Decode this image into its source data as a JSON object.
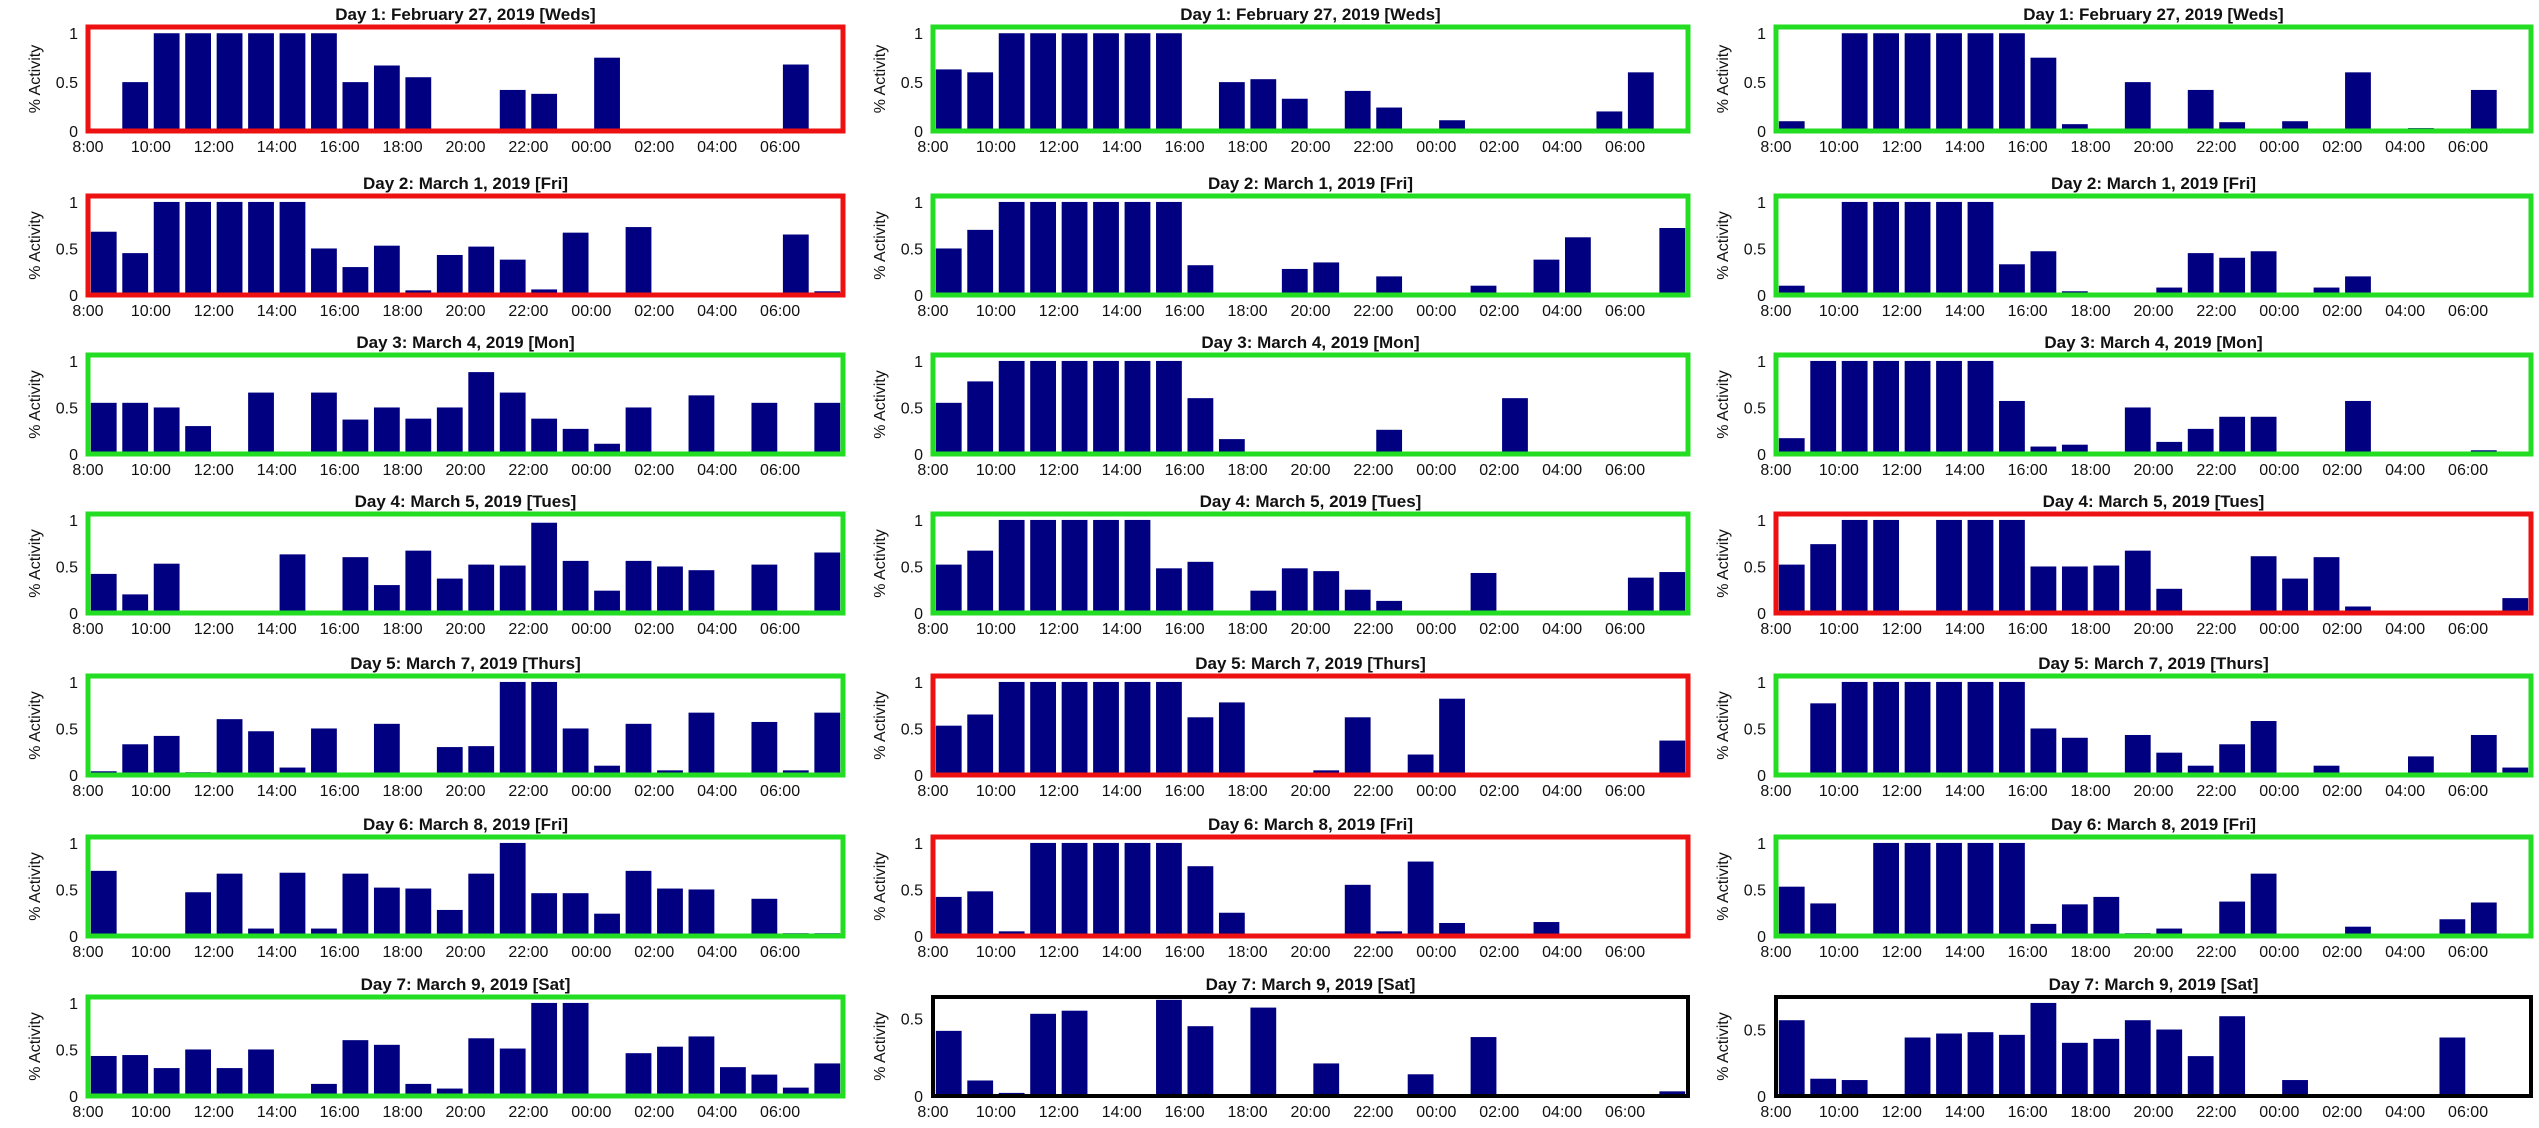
{
  "figure": {
    "bar_color": "#000080",
    "frame_colors": {
      "green": "#22dd22",
      "red": "#ee1111",
      "black": "#000000"
    },
    "ylabel": "% Activity",
    "x_tick_labels": [
      "8:00",
      "10:00",
      "12:00",
      "14:00",
      "16:00",
      "18:00",
      "20:00",
      "22:00",
      "00:00",
      "02:00",
      "04:00",
      "06:00"
    ],
    "bar_slot_hours": 1,
    "start_time": "8:00",
    "end_time": "07:00"
  },
  "chart_data": [
    {
      "col": 0,
      "row": 0,
      "type": "bar",
      "title": "Day 1: February 27, 2019 [Weds]",
      "frame": "red",
      "ylim": [
        0,
        1
      ],
      "yticks": [
        "0",
        "0.5",
        "1"
      ],
      "values": [
        0,
        0.5,
        1,
        1,
        1,
        1,
        1,
        1,
        0.5,
        0.67,
        0.55,
        0,
        0,
        0.42,
        0.38,
        0,
        0.75,
        0,
        0,
        0,
        0,
        0,
        0.68,
        0
      ]
    },
    {
      "col": 0,
      "row": 1,
      "type": "bar",
      "title": "Day 2: March 1, 2019 [Fri]",
      "frame": "red",
      "ylim": [
        0,
        1
      ],
      "yticks": [
        "0",
        "0.5",
        "1"
      ],
      "values": [
        0.68,
        0.45,
        1,
        1,
        1,
        1,
        1,
        0.5,
        0.3,
        0.53,
        0.05,
        0.43,
        0.52,
        0.38,
        0.06,
        0.67,
        0,
        0.73,
        0,
        0,
        0,
        0,
        0.65,
        0.04
      ]
    },
    {
      "col": 0,
      "row": 2,
      "type": "bar",
      "title": "Day 3: March 4, 2019 [Mon]",
      "frame": "green",
      "ylim": [
        0,
        1
      ],
      "yticks": [
        "0",
        "0.5",
        "1"
      ],
      "values": [
        0.55,
        0.55,
        0.5,
        0.3,
        0,
        0.66,
        0,
        0.66,
        0.37,
        0.5,
        0.38,
        0.5,
        0.88,
        0.66,
        0.38,
        0.27,
        0.11,
        0.5,
        0,
        0.63,
        0,
        0.55,
        0,
        0.55
      ]
    },
    {
      "col": 0,
      "row": 3,
      "type": "bar",
      "title": "Day 4: March 5, 2019 [Tues]",
      "frame": "green",
      "ylim": [
        0,
        1
      ],
      "yticks": [
        "0",
        "0.5",
        "1"
      ],
      "values": [
        0.42,
        0.2,
        0.53,
        0,
        0,
        0,
        0.63,
        0,
        0.6,
        0.3,
        0.67,
        0.37,
        0.52,
        0.51,
        0.97,
        0.56,
        0.24,
        0.56,
        0.5,
        0.46,
        0,
        0.52,
        0,
        0.65
      ]
    },
    {
      "col": 0,
      "row": 4,
      "type": "bar",
      "title": "Day 5: March 7, 2019 [Thurs]",
      "frame": "green",
      "ylim": [
        0,
        1
      ],
      "yticks": [
        "0",
        "0.5",
        "1"
      ],
      "values": [
        0.04,
        0.33,
        0.42,
        0.03,
        0.6,
        0.47,
        0.08,
        0.5,
        0,
        0.55,
        0,
        0.3,
        0.31,
        1,
        1,
        0.5,
        0.1,
        0.55,
        0.05,
        0.67,
        0,
        0.57,
        0.05,
        0.67
      ]
    },
    {
      "col": 0,
      "row": 5,
      "type": "bar",
      "title": "Day 6: March 8, 2019 [Fri]",
      "frame": "green",
      "ylim": [
        0,
        1
      ],
      "yticks": [
        "0",
        "0.5",
        "1"
      ],
      "values": [
        0.7,
        0,
        0,
        0.47,
        0.67,
        0.08,
        0.68,
        0.08,
        0.67,
        0.52,
        0.51,
        0.28,
        0.67,
        1,
        0.46,
        0.46,
        0.24,
        0.7,
        0.51,
        0.5,
        0,
        0.4,
        0.03,
        0.03
      ]
    },
    {
      "col": 0,
      "row": 6,
      "type": "bar",
      "title": "Day 7: March 9, 2019 [Sat]",
      "frame": "green",
      "ylim": [
        0,
        1
      ],
      "yticks": [
        "0",
        "0.5",
        "1"
      ],
      "values": [
        0.43,
        0.44,
        0.3,
        0.5,
        0.3,
        0.5,
        0,
        0.13,
        0.6,
        0.55,
        0.13,
        0.08,
        0.62,
        0.51,
        1,
        1,
        0,
        0.46,
        0.53,
        0.64,
        0.31,
        0.23,
        0.09,
        0.35
      ]
    },
    {
      "col": 1,
      "row": 0,
      "type": "bar",
      "title": "Day 1: February 27, 2019 [Weds]",
      "frame": "green",
      "ylim": [
        0,
        1
      ],
      "yticks": [
        "0",
        "0.5",
        "1"
      ],
      "values": [
        0.63,
        0.6,
        1,
        1,
        1,
        1,
        1,
        1,
        0,
        0.5,
        0.53,
        0.33,
        0,
        0.41,
        0.24,
        0,
        0.11,
        0,
        0,
        0,
        0,
        0.2,
        0.6,
        0
      ]
    },
    {
      "col": 1,
      "row": 1,
      "type": "bar",
      "title": "Day 2: March 1, 2019 [Fri]",
      "frame": "green",
      "ylim": [
        0,
        1
      ],
      "yticks": [
        "0",
        "0.5",
        "1"
      ],
      "values": [
        0.5,
        0.7,
        1,
        1,
        1,
        1,
        1,
        1,
        0.32,
        0,
        0,
        0.28,
        0.35,
        0,
        0.2,
        0,
        0,
        0.1,
        0,
        0.38,
        0.62,
        0,
        0,
        0.72
      ]
    },
    {
      "col": 1,
      "row": 2,
      "type": "bar",
      "title": "Day 3: March 4, 2019 [Mon]",
      "frame": "green",
      "ylim": [
        0,
        1
      ],
      "yticks": [
        "0",
        "0.5",
        "1"
      ],
      "values": [
        0.55,
        0.78,
        1,
        1,
        1,
        1,
        1,
        1,
        0.6,
        0.16,
        0,
        0,
        0,
        0,
        0.26,
        0,
        0,
        0,
        0.6,
        0,
        0,
        0,
        0,
        0
      ]
    },
    {
      "col": 1,
      "row": 3,
      "type": "bar",
      "title": "Day 4: March 5, 2019 [Tues]",
      "frame": "green",
      "ylim": [
        0,
        1
      ],
      "yticks": [
        "0",
        "0.5",
        "1"
      ],
      "values": [
        0.52,
        0.67,
        1,
        1,
        1,
        1,
        1,
        0.48,
        0.55,
        0,
        0.24,
        0.48,
        0.45,
        0.25,
        0.13,
        0.02,
        0,
        0.43,
        0,
        0,
        0,
        0,
        0.38,
        0.44
      ]
    },
    {
      "col": 1,
      "row": 4,
      "type": "bar",
      "title": "Day 5: March 7, 2019 [Thurs]",
      "frame": "red",
      "ylim": [
        0,
        1
      ],
      "yticks": [
        "0",
        "0.5",
        "1"
      ],
      "values": [
        0.53,
        0.65,
        1,
        1,
        1,
        1,
        1,
        1,
        0.62,
        0.78,
        0,
        0,
        0.05,
        0.62,
        0,
        0.22,
        0.82,
        0,
        0,
        0.02,
        0,
        0,
        0,
        0.37
      ]
    },
    {
      "col": 1,
      "row": 5,
      "type": "bar",
      "title": "Day 6: March 8, 2019 [Fri]",
      "frame": "red",
      "ylim": [
        0,
        1
      ],
      "yticks": [
        "0",
        "0.5",
        "1"
      ],
      "values": [
        0.42,
        0.48,
        0.05,
        1,
        1,
        1,
        1,
        1,
        0.75,
        0.25,
        0,
        0,
        0,
        0.55,
        0.05,
        0.8,
        0.14,
        0,
        0,
        0.15,
        0,
        0,
        0,
        0
      ]
    },
    {
      "col": 1,
      "row": 6,
      "type": "bar",
      "title": "Day 7: March 9, 2019 [Sat]",
      "frame": "black",
      "ylim": [
        0,
        0.6
      ],
      "yticks": [
        "0",
        "0.5"
      ],
      "values": [
        0.42,
        0.1,
        0.02,
        0.53,
        0.55,
        0,
        0,
        0.62,
        0.45,
        0,
        0.57,
        0,
        0.21,
        0,
        0,
        0.14,
        0,
        0.38,
        0,
        0,
        0,
        0,
        0,
        0.03
      ]
    },
    {
      "col": 2,
      "row": 0,
      "type": "bar",
      "title": "Day 1: February 27, 2019 [Weds]",
      "frame": "green",
      "ylim": [
        0,
        1
      ],
      "yticks": [
        "0",
        "0.5",
        "1"
      ],
      "values": [
        0.1,
        0,
        1,
        1,
        1,
        1,
        1,
        1,
        0.75,
        0.07,
        0,
        0.5,
        0,
        0.42,
        0.09,
        0,
        0.1,
        0,
        0.6,
        0,
        0.03,
        0,
        0.42,
        0
      ]
    },
    {
      "col": 2,
      "row": 1,
      "type": "bar",
      "title": "Day 2: March 1, 2019 [Fri]",
      "frame": "green",
      "ylim": [
        0,
        1
      ],
      "yticks": [
        "0",
        "0.5",
        "1"
      ],
      "values": [
        0.1,
        0,
        1,
        1,
        1,
        1,
        1,
        0.33,
        0.47,
        0.04,
        0.02,
        0,
        0.08,
        0.45,
        0.4,
        0.47,
        0,
        0.08,
        0.2,
        0,
        0,
        0,
        0,
        0
      ]
    },
    {
      "col": 2,
      "row": 2,
      "type": "bar",
      "title": "Day 3: March 4, 2019 [Mon]",
      "frame": "green",
      "ylim": [
        0,
        1
      ],
      "yticks": [
        "0",
        "0.5",
        "1"
      ],
      "values": [
        0.17,
        1,
        1,
        1,
        1,
        1,
        1,
        0.57,
        0.08,
        0.1,
        0,
        0.5,
        0.13,
        0.27,
        0.4,
        0.4,
        0,
        0,
        0.57,
        0,
        0,
        0,
        0.04,
        0
      ]
    },
    {
      "col": 2,
      "row": 3,
      "type": "bar",
      "title": "Day 4: March 5, 2019 [Tues]",
      "frame": "red",
      "ylim": [
        0,
        1
      ],
      "yticks": [
        "0",
        "0.5",
        "1"
      ],
      "values": [
        0.52,
        0.74,
        1,
        1,
        0,
        1,
        1,
        1,
        0.5,
        0.5,
        0.51,
        0.67,
        0.26,
        0,
        0,
        0.61,
        0.37,
        0.6,
        0.07,
        0,
        0,
        0,
        0,
        0.16
      ]
    },
    {
      "col": 2,
      "row": 4,
      "type": "bar",
      "title": "Day 5: March 7, 2019 [Thurs]",
      "frame": "green",
      "ylim": [
        0,
        1
      ],
      "yticks": [
        "0",
        "0.5",
        "1"
      ],
      "values": [
        0,
        0.77,
        1,
        1,
        1,
        1,
        1,
        1,
        0.5,
        0.4,
        0.02,
        0.43,
        0.24,
        0.1,
        0.33,
        0.58,
        0,
        0.1,
        0,
        0,
        0.2,
        0,
        0.43,
        0.08
      ]
    },
    {
      "col": 2,
      "row": 5,
      "type": "bar",
      "title": "Day 6: March 8, 2019 [Fri]",
      "frame": "green",
      "ylim": [
        0,
        1
      ],
      "yticks": [
        "0",
        "0.5",
        "1"
      ],
      "values": [
        0.53,
        0.35,
        0,
        1,
        1,
        1,
        1,
        1,
        0.13,
        0.34,
        0.42,
        0.03,
        0.08,
        0,
        0.37,
        0.67,
        0,
        0,
        0.1,
        0,
        0,
        0.18,
        0.36,
        0
      ]
    },
    {
      "col": 2,
      "row": 6,
      "type": "bar",
      "title": "Day 7: March 9, 2019 [Sat]",
      "frame": "black",
      "ylim": [
        0,
        0.7
      ],
      "yticks": [
        "0",
        "0.5"
      ],
      "values": [
        0.57,
        0.13,
        0.12,
        0,
        0.44,
        0.47,
        0.48,
        0.46,
        0.7,
        0.4,
        0.43,
        0.57,
        0.5,
        0.3,
        0.6,
        0,
        0.12,
        0,
        0,
        0,
        0,
        0.44,
        0,
        0
      ]
    }
  ]
}
